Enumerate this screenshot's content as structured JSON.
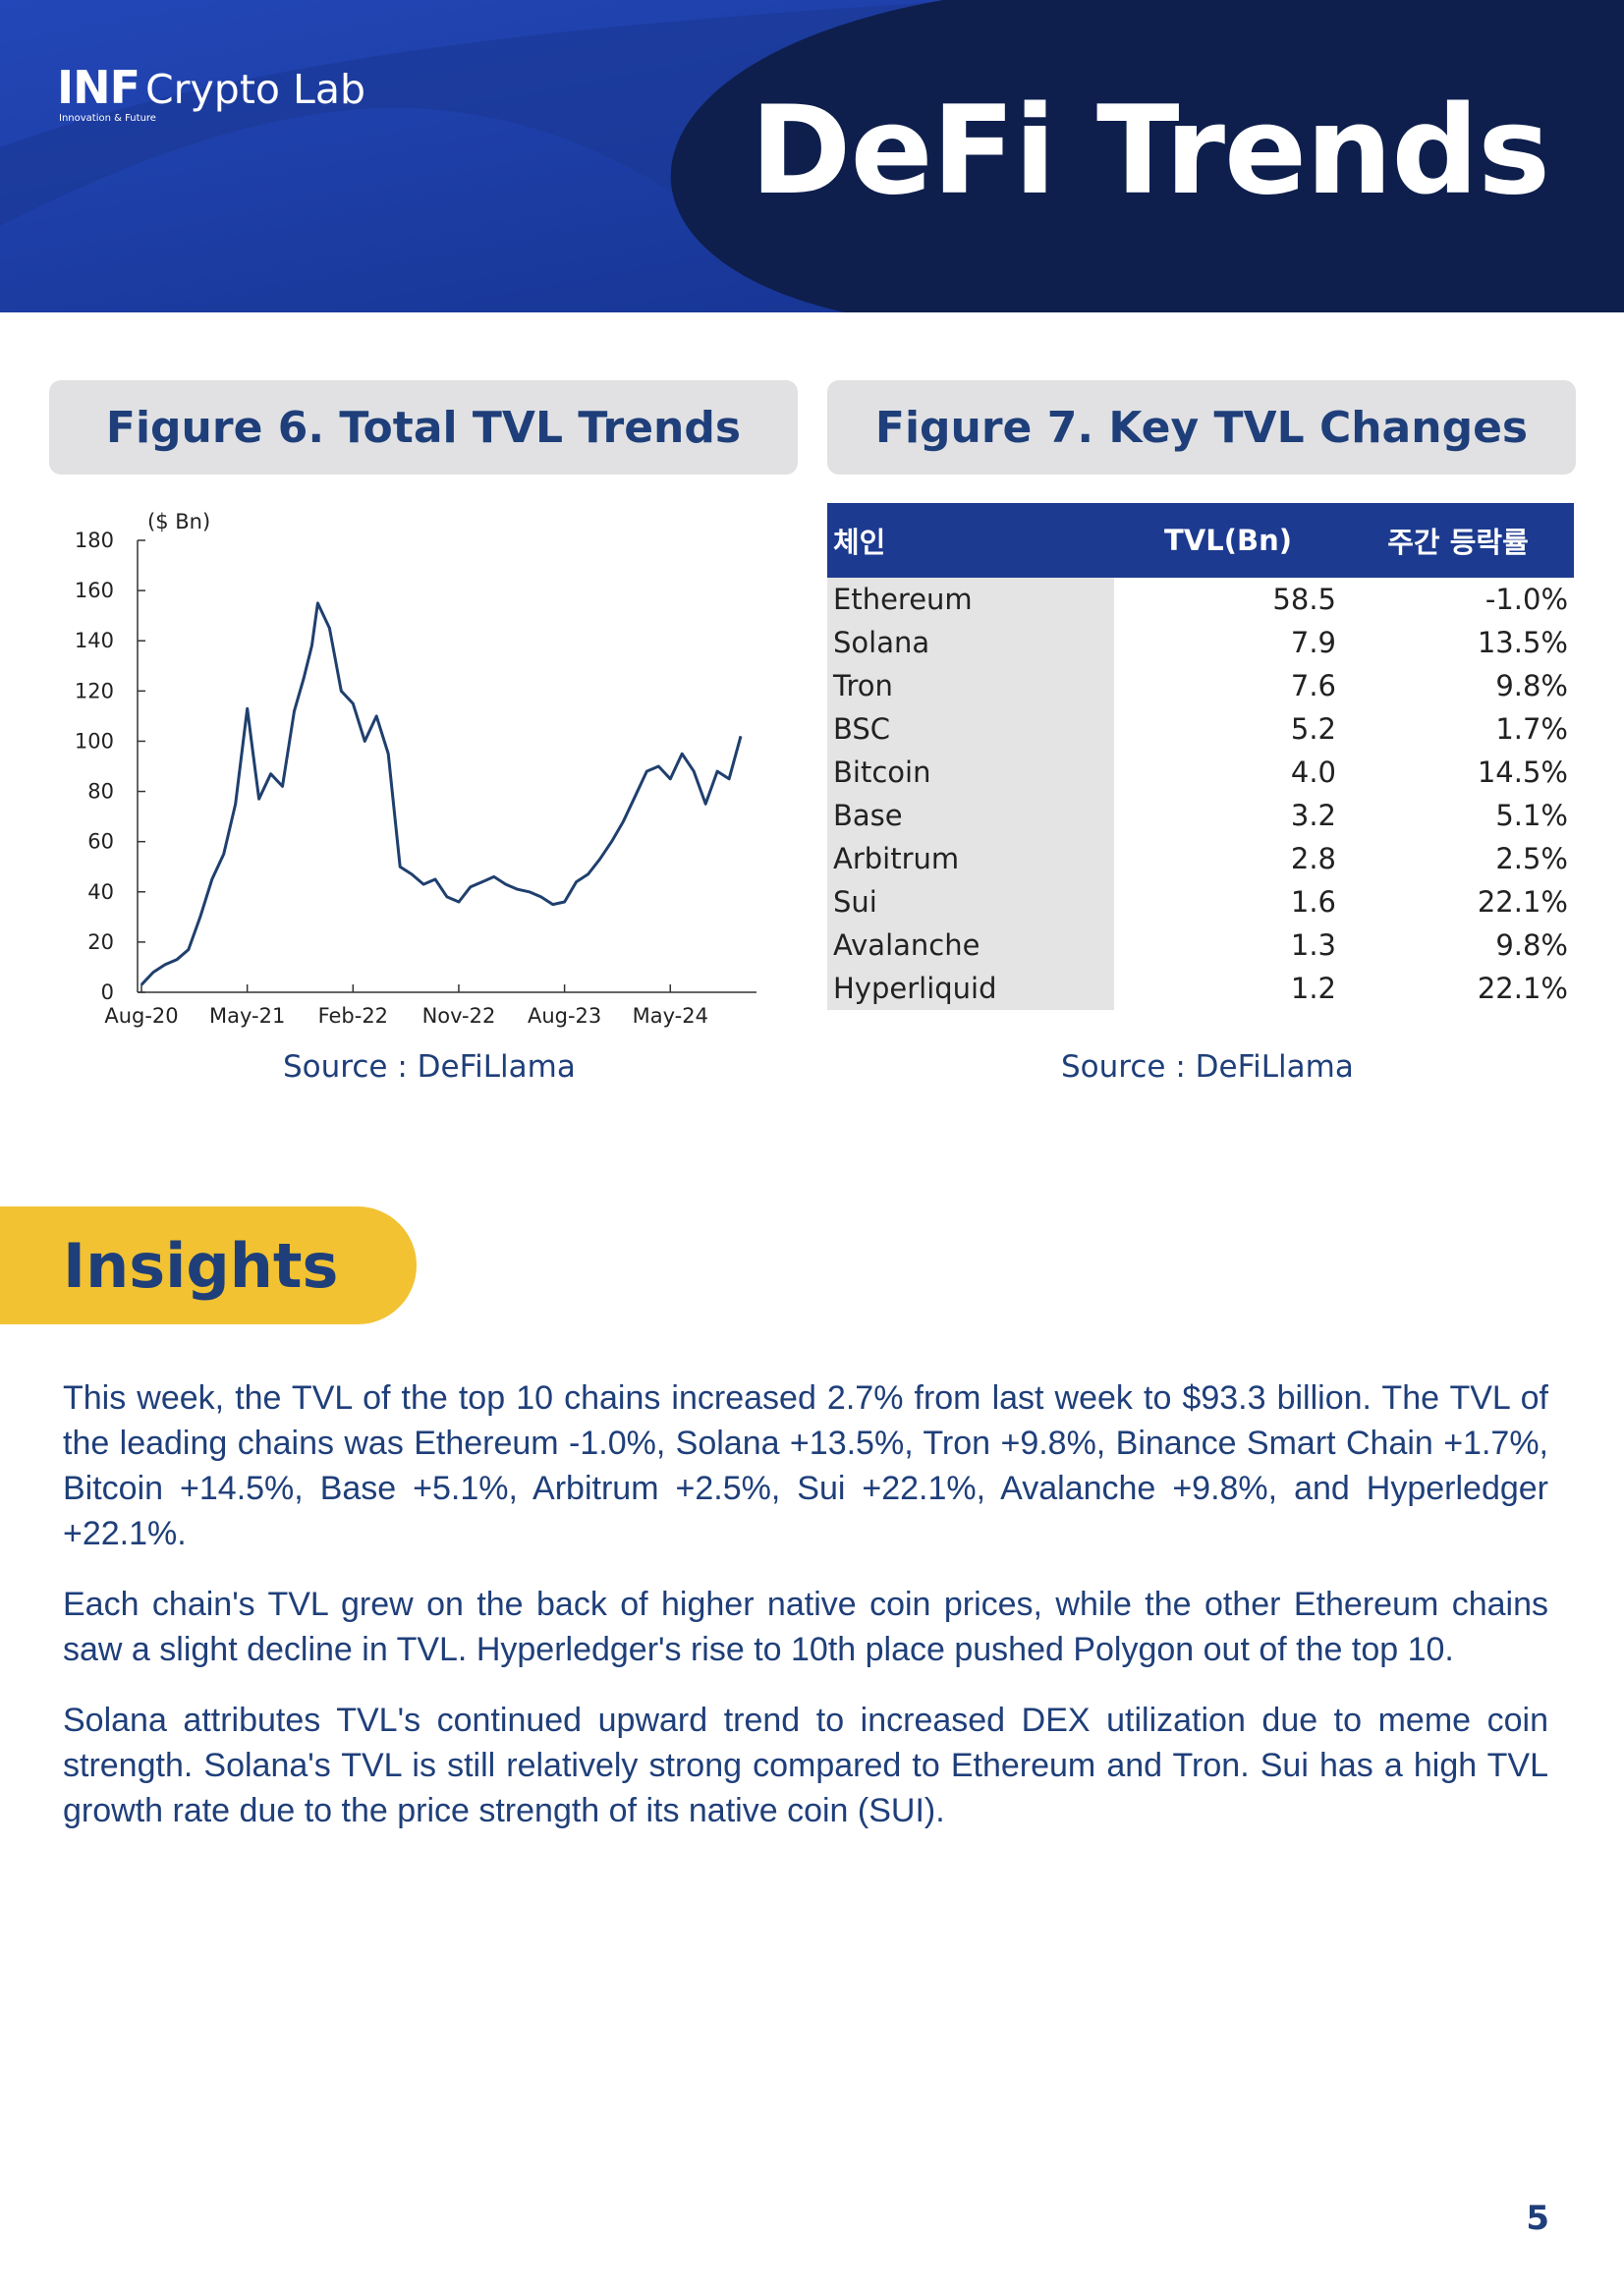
{
  "header": {
    "logo_bold": "INF",
    "logo_text": "Crypto Lab",
    "logo_tagline": "Innovation & Future",
    "title": "DeFi Trends",
    "colors": {
      "dark_navy": "#0e1f4d",
      "royal_blue": "#1b3ea8"
    }
  },
  "figure6": {
    "title": "Figure 6. Total TVL Trends",
    "source": "Source : DeFiLlama"
  },
  "figure7": {
    "title": "Figure 7. Key TVL Changes",
    "source": "Source : DeFiLlama",
    "headers": [
      "체인",
      "TVL(Bn)",
      "주간 등락률"
    ],
    "rows": [
      {
        "chain": "Ethereum",
        "tvl": "58.5",
        "change": "-1.0%"
      },
      {
        "chain": "Solana",
        "tvl": "7.9",
        "change": "13.5%"
      },
      {
        "chain": "Tron",
        "tvl": "7.6",
        "change": "9.8%"
      },
      {
        "chain": "BSC",
        "tvl": "5.2",
        "change": "1.7%"
      },
      {
        "chain": "Bitcoin",
        "tvl": "4.0",
        "change": "14.5%"
      },
      {
        "chain": "Base",
        "tvl": "3.2",
        "change": "5.1%"
      },
      {
        "chain": "Arbitrum",
        "tvl": "2.8",
        "change": "2.5%"
      },
      {
        "chain": "Sui",
        "tvl": "1.6",
        "change": "22.1%"
      },
      {
        "chain": "Avalanche",
        "tvl": "1.3",
        "change": "9.8%"
      },
      {
        "chain": "Hyperliquid",
        "tvl": "1.2",
        "change": "22.1%"
      }
    ]
  },
  "chart_data": {
    "type": "line",
    "title": "",
    "unit_label": "($ Bn)",
    "xlabel": "",
    "ylabel": "",
    "ylim": [
      0,
      180
    ],
    "yticks": [
      0,
      20,
      40,
      60,
      80,
      100,
      120,
      140,
      160,
      180
    ],
    "xlim": [
      0,
      52
    ],
    "xtick_labels": [
      "Aug-20",
      "May-21",
      "Feb-22",
      "Nov-22",
      "Aug-23",
      "May-24"
    ],
    "xtick_positions": [
      0,
      9,
      18,
      27,
      36,
      45
    ],
    "line_color": "#1f3f6e",
    "series": [
      {
        "x": [
          0,
          1,
          2,
          3,
          4,
          5,
          6,
          7,
          8,
          9,
          9.5,
          10,
          11,
          12,
          13,
          13.8,
          14.5,
          15,
          16,
          17,
          18,
          19,
          20,
          21,
          22,
          23,
          24,
          25,
          26,
          27,
          28,
          29,
          30,
          31,
          32,
          33,
          34,
          35,
          36,
          37,
          38,
          39,
          40,
          41,
          42,
          43,
          44,
          45,
          46,
          47,
          48,
          49,
          50,
          51
        ],
        "y": [
          3,
          8,
          11,
          13,
          17,
          30,
          45,
          55,
          75,
          113,
          95,
          77,
          87,
          82,
          112,
          125,
          138,
          155,
          145,
          120,
          115,
          100,
          110,
          95,
          50,
          47,
          43,
          45,
          38,
          36,
          42,
          44,
          46,
          43,
          41,
          40,
          38,
          35,
          36,
          44,
          47,
          53,
          60,
          68,
          78,
          88,
          90,
          85,
          95,
          88,
          75,
          88,
          85,
          102
        ]
      }
    ]
  },
  "insights": {
    "heading": "Insights",
    "paragraphs": [
      "This week, the TVL of the top 10 chains increased 2.7% from last week to $93.3 billion. The TVL of the leading chains was Ethereum -1.0%, Solana +13.5%, Tron +9.8%, Binance Smart Chain +1.7%, Bitcoin +14.5%, Base +5.1%, Arbitrum +2.5%, Sui +22.1%, Avalanche +9.8%, and Hyperledger +22.1%.",
      "Each chain's TVL grew on the back of higher native coin prices, while the other Ethereum chains saw a slight decline in TVL. Hyperledger's rise to 10th place pushed Polygon out of the top 10.",
      "Solana attributes TVL's continued upward trend to increased DEX utilization due to meme coin strength. Solana's TVL is still relatively strong compared to Ethereum and Tron. Sui has a high TVL growth rate due to the price strength of its native coin (SUI)."
    ]
  },
  "page_number": "5"
}
